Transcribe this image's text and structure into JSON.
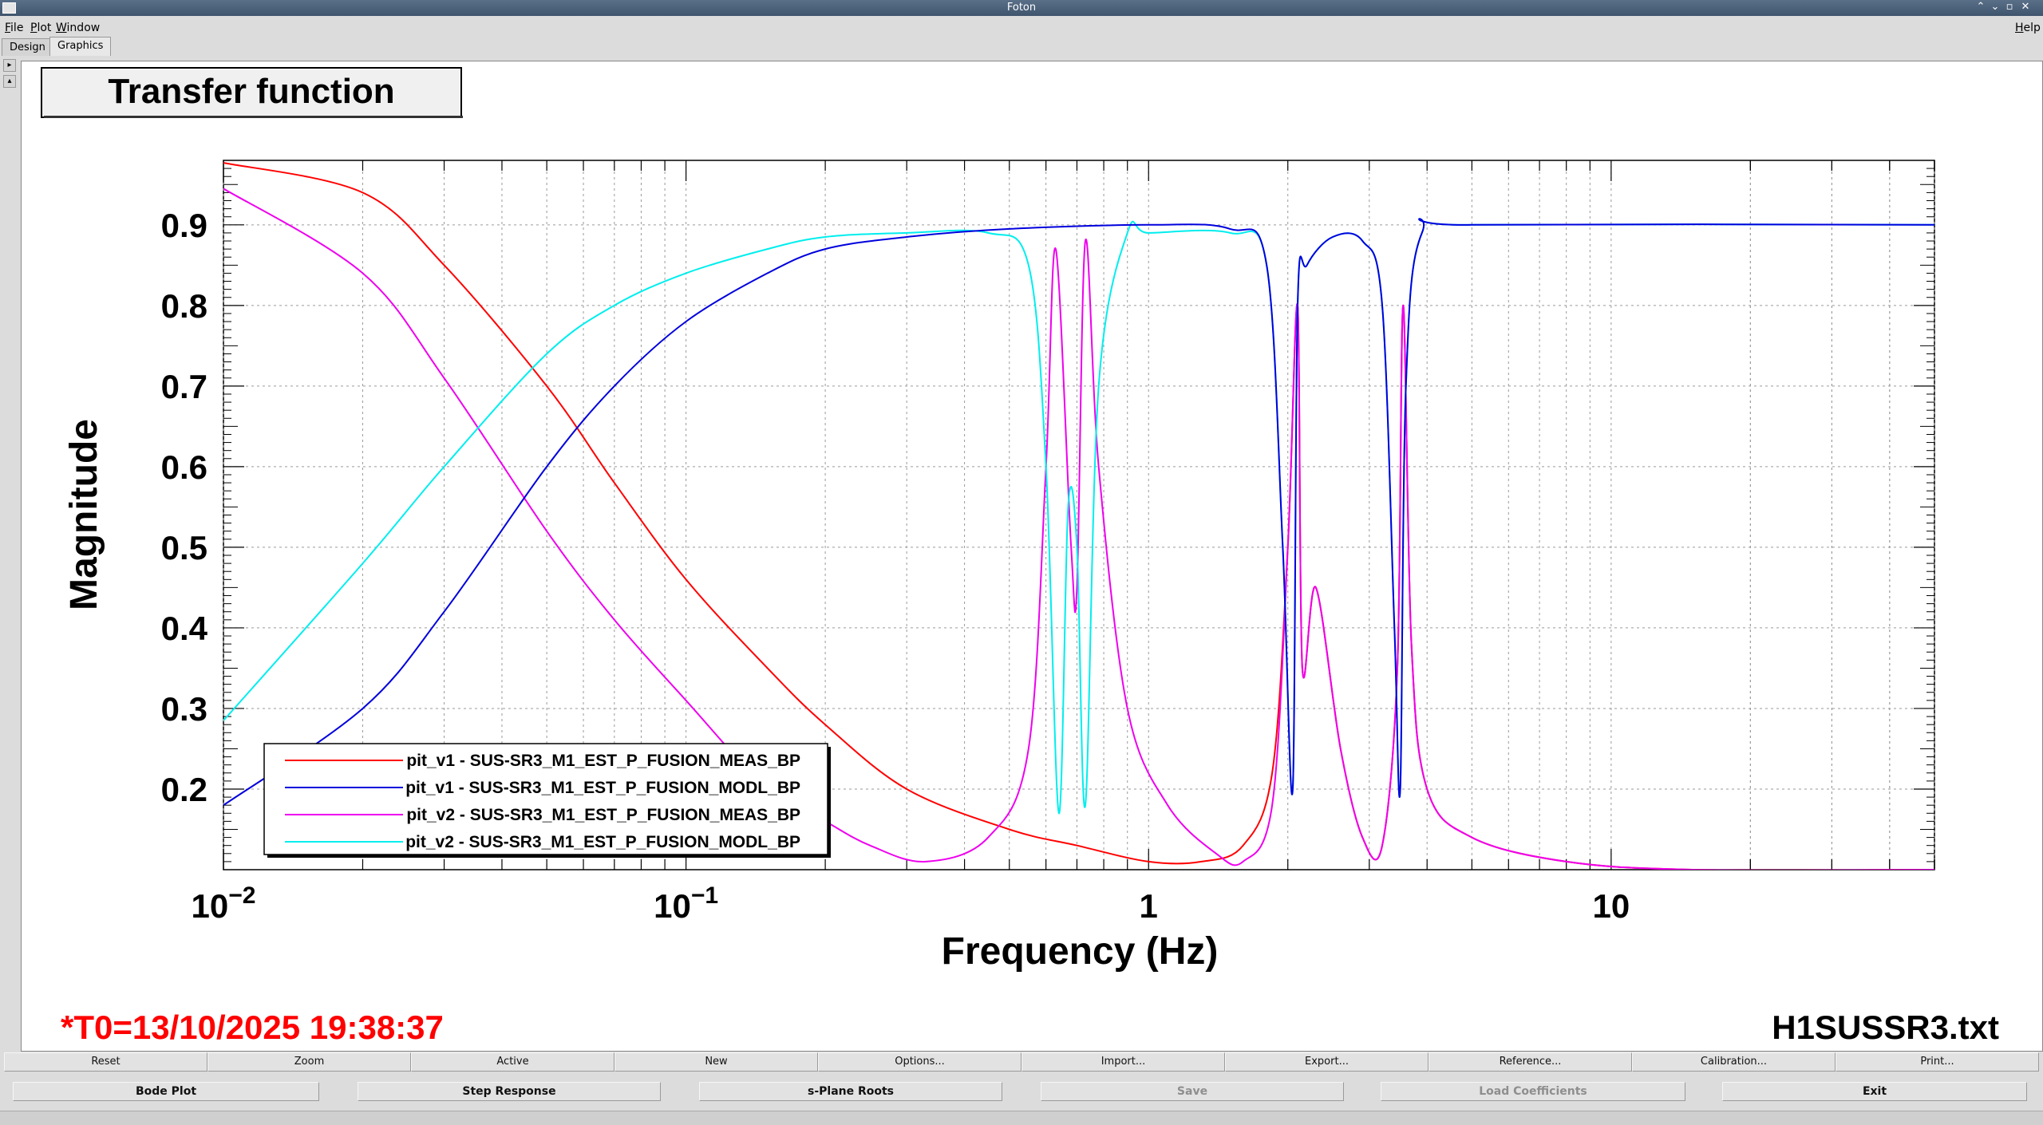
{
  "window": {
    "title": "Foton",
    "help": "Help"
  },
  "menu": {
    "items": [
      "File",
      "Plot",
      "Window"
    ]
  },
  "tabs": [
    "Design",
    "Graphics"
  ],
  "plot": {
    "title": "Transfer function",
    "t0": "*T0=13/10/2025 19:38:37",
    "filename": "H1SUSSR3.txt",
    "title_color": "#000000",
    "t0_color": "#ff0000"
  },
  "chart_data": {
    "type": "line",
    "xlabel": "Frequency (Hz)",
    "ylabel": "Magnitude",
    "xscale": "log",
    "xlim": [
      0.01,
      50
    ],
    "ylim": [
      0.1,
      0.98
    ],
    "grid": true,
    "legend_position": "bottom-left",
    "x_ticks": [
      {
        "value": 0.01,
        "base": "10",
        "exp": "−2"
      },
      {
        "value": 0.1,
        "base": "10",
        "exp": "−1"
      },
      {
        "value": 1,
        "label": "1"
      },
      {
        "value": 10,
        "label": "10"
      }
    ],
    "y_ticks": [
      "0.2",
      "0.3",
      "0.4",
      "0.5",
      "0.6",
      "0.7",
      "0.8",
      "0.9"
    ],
    "series": [
      {
        "name": "pit_v1 - SUS-SR3_M1_EST_P_FUSION_MEAS_BP",
        "color": "#ff0000",
        "points": [
          [
            0.01,
            0.977
          ],
          [
            0.02,
            0.94
          ],
          [
            0.03,
            0.85
          ],
          [
            0.05,
            0.7
          ],
          [
            0.07,
            0.58
          ],
          [
            0.1,
            0.46
          ],
          [
            0.15,
            0.35
          ],
          [
            0.2,
            0.28
          ],
          [
            0.3,
            0.2
          ],
          [
            0.5,
            0.15
          ],
          [
            0.7,
            0.13
          ],
          [
            1,
            0.11
          ],
          [
            1.3,
            0.11
          ],
          [
            1.6,
            0.13
          ],
          [
            1.85,
            0.22
          ],
          [
            2.0,
            0.5
          ],
          [
            2.1,
            0.8
          ],
          [
            2.15,
            0.35
          ],
          [
            2.3,
            0.45
          ],
          [
            2.6,
            0.25
          ],
          [
            2.9,
            0.14
          ],
          [
            3.2,
            0.13
          ],
          [
            3.45,
            0.35
          ],
          [
            3.55,
            0.8
          ],
          [
            3.7,
            0.38
          ],
          [
            4.0,
            0.2
          ],
          [
            5,
            0.14
          ],
          [
            8,
            0.11
          ],
          [
            15,
            0.1
          ],
          [
            50,
            0.1
          ]
        ]
      },
      {
        "name": "pit_v1 - SUS-SR3_M1_EST_P_FUSION_MODL_BP",
        "color": "#0000dd",
        "points": [
          [
            0.01,
            0.18
          ],
          [
            0.02,
            0.3
          ],
          [
            0.03,
            0.42
          ],
          [
            0.05,
            0.6
          ],
          [
            0.07,
            0.7
          ],
          [
            0.1,
            0.78
          ],
          [
            0.15,
            0.84
          ],
          [
            0.2,
            0.87
          ],
          [
            0.3,
            0.885
          ],
          [
            0.5,
            0.895
          ],
          [
            1,
            0.9
          ],
          [
            1.5,
            0.895
          ],
          [
            1.8,
            0.85
          ],
          [
            1.95,
            0.5
          ],
          [
            2.05,
            0.2
          ],
          [
            2.1,
            0.8
          ],
          [
            2.2,
            0.85
          ],
          [
            2.5,
            0.885
          ],
          [
            2.9,
            0.88
          ],
          [
            3.2,
            0.8
          ],
          [
            3.4,
            0.4
          ],
          [
            3.5,
            0.2
          ],
          [
            3.6,
            0.7
          ],
          [
            3.9,
            0.89
          ],
          [
            5,
            0.9
          ],
          [
            50,
            0.9
          ]
        ]
      },
      {
        "name": "pit_v2 - SUS-SR3_M1_EST_P_FUSION_MEAS_BP",
        "color": "#ee00ee",
        "points": [
          [
            0.01,
            0.945
          ],
          [
            0.02,
            0.84
          ],
          [
            0.03,
            0.71
          ],
          [
            0.05,
            0.52
          ],
          [
            0.07,
            0.41
          ],
          [
            0.1,
            0.31
          ],
          [
            0.15,
            0.2
          ],
          [
            0.2,
            0.16
          ],
          [
            0.25,
            0.13
          ],
          [
            0.33,
            0.11
          ],
          [
            0.45,
            0.14
          ],
          [
            0.55,
            0.25
          ],
          [
            0.6,
            0.6
          ],
          [
            0.63,
            0.87
          ],
          [
            0.68,
            0.5
          ],
          [
            0.7,
            0.45
          ],
          [
            0.73,
            0.88
          ],
          [
            0.78,
            0.6
          ],
          [
            0.9,
            0.3
          ],
          [
            1.1,
            0.18
          ],
          [
            1.4,
            0.12
          ],
          [
            1.6,
            0.11
          ],
          [
            1.85,
            0.18
          ],
          [
            2.0,
            0.5
          ],
          [
            2.1,
            0.8
          ],
          [
            2.15,
            0.35
          ],
          [
            2.3,
            0.45
          ],
          [
            2.6,
            0.25
          ],
          [
            2.9,
            0.14
          ],
          [
            3.2,
            0.13
          ],
          [
            3.45,
            0.35
          ],
          [
            3.55,
            0.8
          ],
          [
            3.7,
            0.38
          ],
          [
            4.0,
            0.2
          ],
          [
            5,
            0.14
          ],
          [
            8,
            0.11
          ],
          [
            15,
            0.1
          ],
          [
            50,
            0.1
          ]
        ]
      },
      {
        "name": "pit_v2 - SUS-SR3_M1_EST_P_FUSION_MODL_BP",
        "color": "#00eeee",
        "points": [
          [
            0.01,
            0.285
          ],
          [
            0.02,
            0.48
          ],
          [
            0.03,
            0.6
          ],
          [
            0.05,
            0.74
          ],
          [
            0.07,
            0.8
          ],
          [
            0.1,
            0.84
          ],
          [
            0.15,
            0.87
          ],
          [
            0.2,
            0.885
          ],
          [
            0.3,
            0.89
          ],
          [
            0.45,
            0.89
          ],
          [
            0.55,
            0.85
          ],
          [
            0.6,
            0.6
          ],
          [
            0.64,
            0.17
          ],
          [
            0.67,
            0.55
          ],
          [
            0.7,
            0.5
          ],
          [
            0.73,
            0.18
          ],
          [
            0.78,
            0.7
          ],
          [
            0.9,
            0.89
          ],
          [
            1,
            0.89
          ],
          [
            1.5,
            0.89
          ],
          [
            1.8,
            0.85
          ],
          [
            1.95,
            0.5
          ],
          [
            2.05,
            0.2
          ],
          [
            2.1,
            0.8
          ],
          [
            2.2,
            0.85
          ],
          [
            2.5,
            0.885
          ],
          [
            2.9,
            0.88
          ],
          [
            3.2,
            0.8
          ],
          [
            3.4,
            0.4
          ],
          [
            3.5,
            0.2
          ],
          [
            3.6,
            0.7
          ],
          [
            3.9,
            0.89
          ],
          [
            5,
            0.9
          ],
          [
            50,
            0.9
          ]
        ]
      }
    ]
  },
  "toolbar1": [
    "Reset",
    "Zoom",
    "Active",
    "New",
    "Options...",
    "Import...",
    "Export...",
    "Reference...",
    "Calibration...",
    "Print..."
  ],
  "toolbar2": [
    {
      "label": "Bode Plot",
      "enabled": true
    },
    {
      "label": "Step Response",
      "enabled": true
    },
    {
      "label": "s-Plane Roots",
      "enabled": true
    },
    {
      "label": "Save",
      "enabled": false
    },
    {
      "label": "Load Coefficients",
      "enabled": false
    },
    {
      "label": "Exit",
      "enabled": true
    }
  ]
}
